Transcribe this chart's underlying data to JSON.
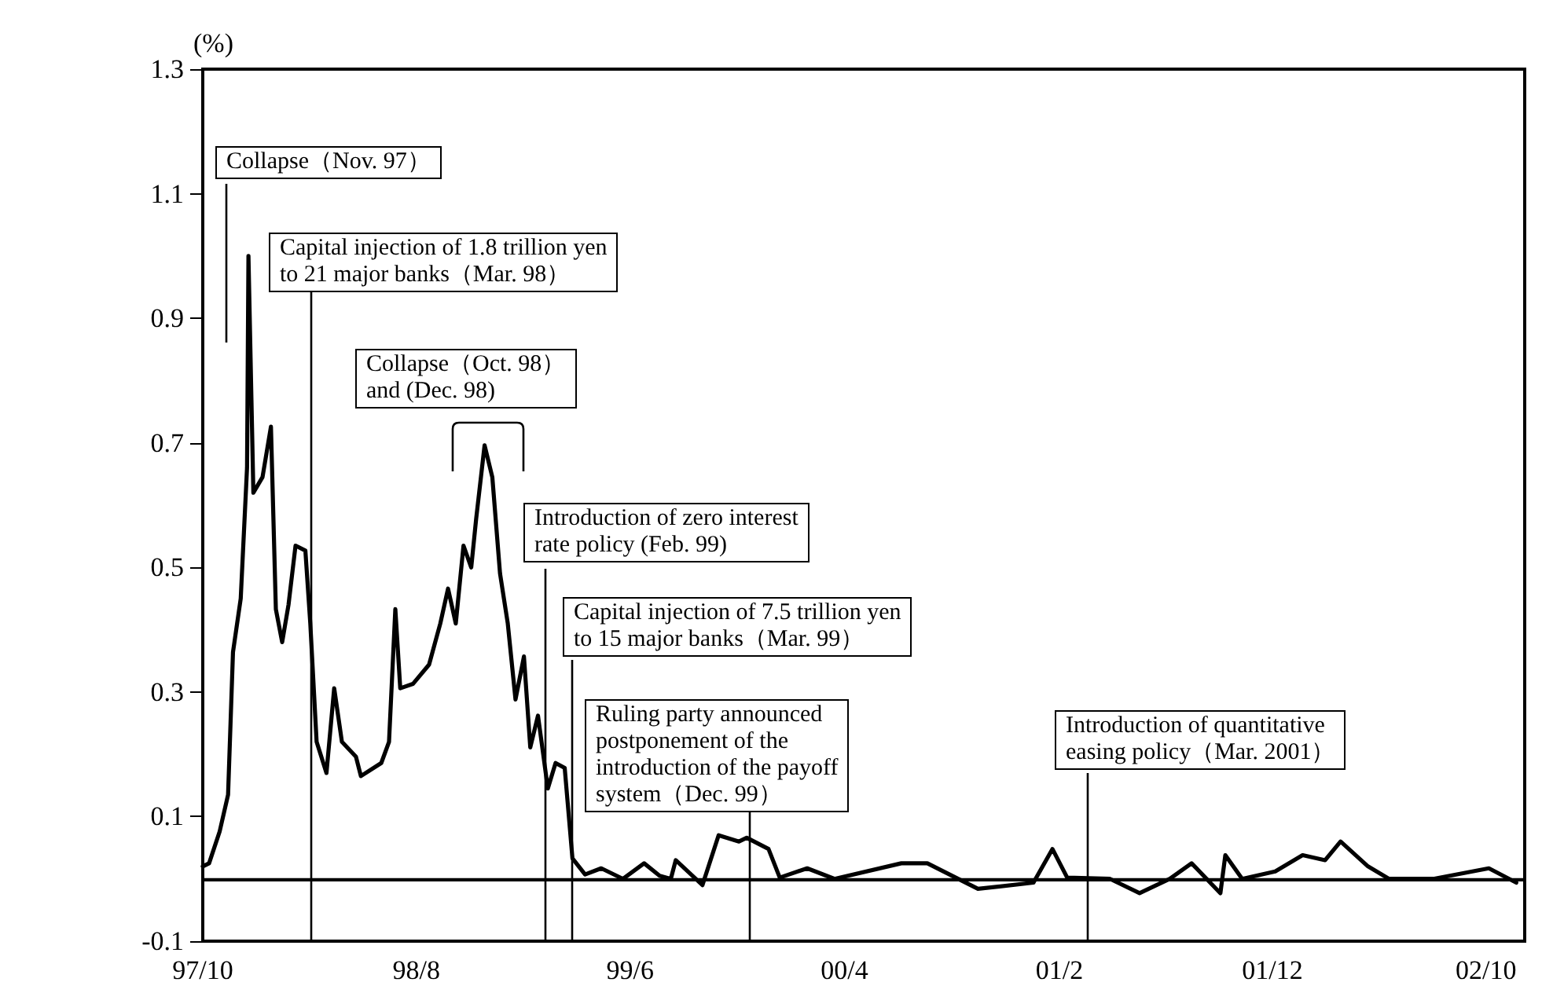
{
  "chart_data": {
    "type": "line",
    "ylabel": "(%)",
    "color": "#000000",
    "line_style": "solid",
    "x": [
      "1997-10-01",
      "1997-10-10",
      "1997-10-25",
      "1997-11-06",
      "1997-11-13",
      "1997-11-24",
      "1997-12-03",
      "1997-12-05",
      "1997-12-12",
      "1997-12-25",
      "1998-01-06",
      "1998-01-13",
      "1998-01-22",
      "1998-01-31",
      "1998-02-10",
      "1998-02-24",
      "1998-03-03",
      "1998-03-12",
      "1998-03-26",
      "1998-04-06",
      "1998-04-17",
      "1998-05-07",
      "1998-05-14",
      "1998-06-12",
      "1998-06-23",
      "1998-07-02",
      "1998-07-09",
      "1998-07-27",
      "1998-08-19",
      "1998-09-04",
      "1998-09-15",
      "1998-09-26",
      "1998-10-07",
      "1998-10-18",
      "1998-10-25",
      "1998-11-06",
      "1998-11-17",
      "1998-11-28",
      "1998-12-09",
      "1998-12-20",
      "1999-01-01",
      "1999-01-10",
      "1999-01-21",
      "1999-02-04",
      "1999-02-15",
      "1999-02-28",
      "1999-03-11",
      "1999-03-29",
      "1999-04-21",
      "1999-05-22",
      "1999-06-21",
      "1999-07-13",
      "1999-07-29",
      "1999-08-05",
      "1999-09-12",
      "1999-10-05",
      "1999-11-03",
      "1999-11-14",
      "1999-12-15",
      "1999-12-31",
      "2000-02-08",
      "2000-03-18",
      "2000-06-21",
      "2000-07-28",
      "2000-10-08",
      "2000-12-26",
      "2001-01-22",
      "2001-02-12",
      "2001-04-14",
      "2001-05-26",
      "2001-07-08",
      "2001-08-08",
      "2001-09-18",
      "2001-09-25",
      "2001-10-19",
      "2001-12-05",
      "2002-01-13",
      "2002-02-14",
      "2002-03-08",
      "2002-04-16",
      "2002-05-16",
      "2002-07-18",
      "2002-10-05",
      "2002-11-13"
    ],
    "values": [
      0.02,
      0.025,
      0.076,
      0.135,
      0.364,
      0.45,
      0.66,
      1.0,
      0.62,
      0.645,
      0.726,
      0.433,
      0.38,
      0.44,
      0.535,
      0.527,
      0.41,
      0.22,
      0.17,
      0.306,
      0.22,
      0.196,
      0.165,
      0.186,
      0.22,
      0.433,
      0.306,
      0.313,
      0.344,
      0.41,
      0.466,
      0.41,
      0.535,
      0.5,
      0.578,
      0.696,
      0.645,
      0.49,
      0.41,
      0.288,
      0.357,
      0.211,
      0.262,
      0.145,
      0.186,
      0.178,
      0.033,
      0.007,
      0.017,
      0.0,
      0.025,
      0.005,
      0.0,
      0.03,
      -0.01,
      0.07,
      0.06,
      0.066,
      0.048,
      0.002,
      0.017,
      0.0,
      0.025,
      0.025,
      -0.016,
      -0.006,
      0.048,
      0.002,
      0.0,
      -0.023,
      0.0,
      0.025,
      -0.023,
      0.038,
      0.0,
      0.012,
      0.038,
      0.03,
      0.06,
      0.02,
      0.0,
      0.0,
      0.017,
      -0.006
    ],
    "xlim": [
      "1997-10-01",
      "2002-11-25"
    ],
    "xticks": [
      {
        "value": "1997-10-01",
        "label": "97/10"
      },
      {
        "value": "1998-08-01",
        "label": "98/8"
      },
      {
        "value": "1999-06-01",
        "label": "99/6"
      },
      {
        "value": "2000-04-01",
        "label": "00/4"
      },
      {
        "value": "2001-02-01",
        "label": "01/2"
      },
      {
        "value": "2001-12-01",
        "label": "01/12"
      },
      {
        "value": "2002-10-01",
        "label": "02/10"
      }
    ],
    "ylim": [
      -0.1,
      1.3
    ],
    "yticks": [
      -0.1,
      0.1,
      0.3,
      0.5,
      0.7,
      0.9,
      1.1,
      1.3
    ],
    "ref_lines": [
      {
        "axis": "y",
        "value": 0,
        "color": "#000000"
      }
    ],
    "annotations": [
      "Collapse（Nov. 97）",
      "Capital injection of 1.8 trillion yen\nto 21 major banks（Mar. 98）",
      "Collapse（Oct. 98）\nand (Dec. 98)",
      "Introduction of zero interest\nrate policy (Feb. 99)",
      "Capital injection of 7.5 trillion yen\nto 15 major banks（Mar. 99）",
      "Ruling party announced\npostponement of the\nintroduction of the payoff\nsystem（Dec. 99）",
      "Introduction of quantitative\neasing policy（Mar. 2001）"
    ]
  }
}
